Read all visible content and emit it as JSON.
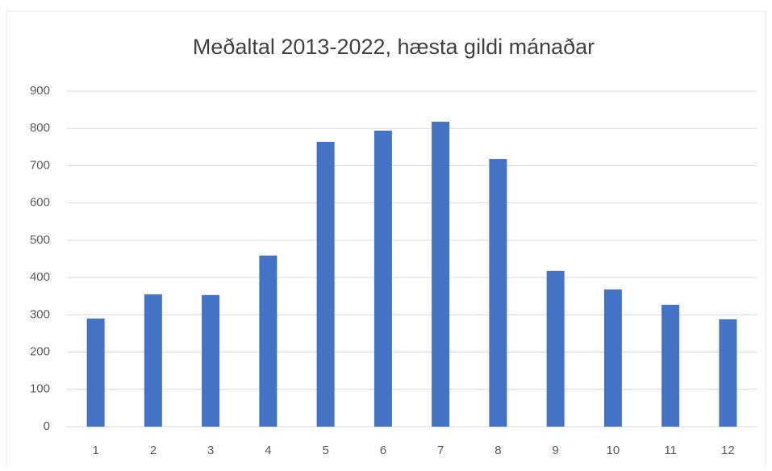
{
  "chart_data": {
    "type": "bar",
    "title": "Meðaltal 2013-2022, hæsta gildi mánaðar",
    "categories": [
      "1",
      "2",
      "3",
      "4",
      "5",
      "6",
      "7",
      "8",
      "9",
      "10",
      "11",
      "12"
    ],
    "values": [
      290,
      355,
      353,
      459,
      764,
      794,
      818,
      718,
      418,
      368,
      327,
      288
    ],
    "color": "#4472c4",
    "ylim": [
      0,
      900
    ],
    "yticks": [
      0,
      100,
      200,
      300,
      400,
      500,
      600,
      700,
      800,
      900
    ],
    "grid": true
  }
}
